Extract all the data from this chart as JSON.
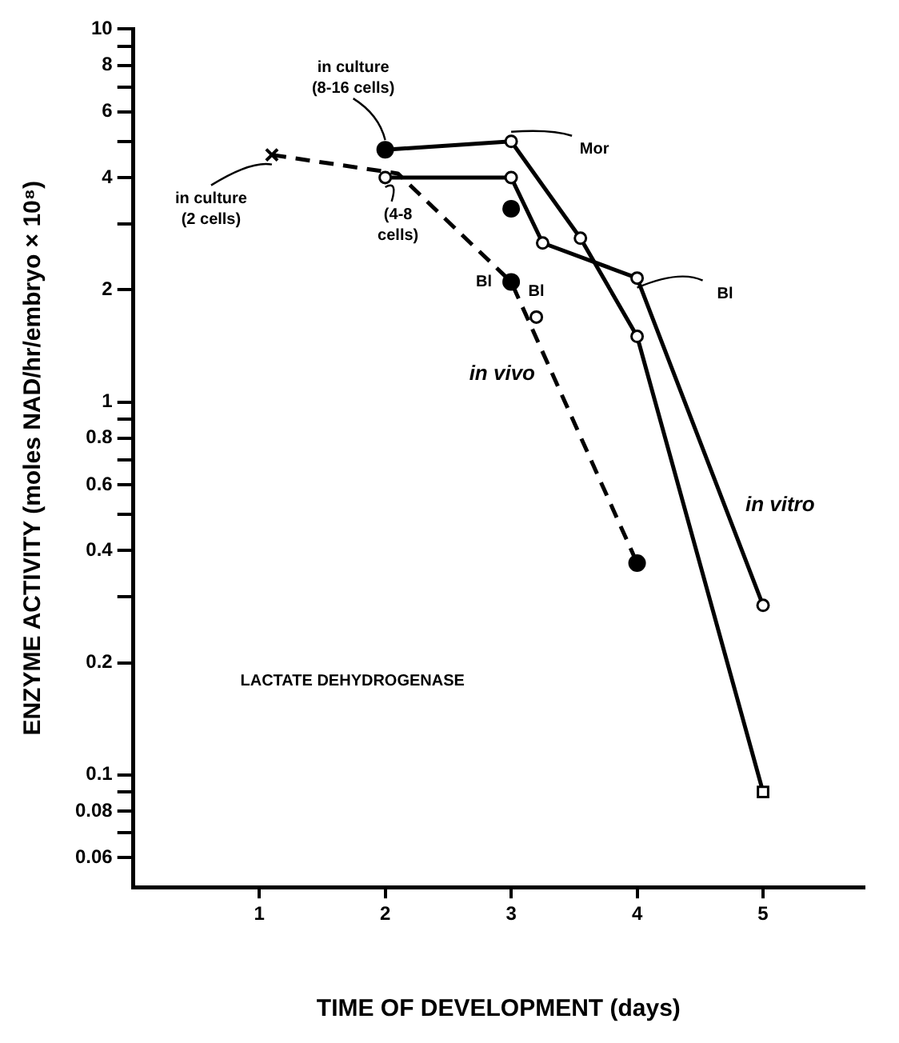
{
  "chart_data": {
    "type": "line",
    "xlabel": "TIME OF DEVELOPMENT (days)",
    "ylabel": "ENZYME ACTIVITY (moles NAD/hr/embryo × 10⁸)",
    "log": "y",
    "grid": false,
    "legend": false,
    "xlim": [
      0,
      5.8
    ],
    "xticks": [
      1,
      2,
      3,
      4,
      5
    ],
    "ylim": [
      0.05,
      10
    ],
    "yticks": [
      10,
      {
        "value": 9,
        "label": null
      },
      8,
      {
        "value": 7,
        "label": null
      },
      6,
      {
        "value": 5,
        "label": null
      },
      4,
      {
        "value": 3,
        "label": null
      },
      2,
      1,
      {
        "value": 0.9,
        "label": null
      },
      0.8,
      {
        "value": 0.7,
        "label": null
      },
      0.6,
      {
        "value": 0.5,
        "label": null
      },
      0.4,
      {
        "value": 0.3,
        "label": null
      },
      0.2,
      0.1,
      {
        "value": 0.09,
        "label": null
      },
      0.08,
      {
        "value": 0.07,
        "label": null
      },
      0.06
    ],
    "series": [
      {
        "name": "in vivo",
        "line_style": "dashed",
        "marker": "none",
        "color": "#000000",
        "x": [
          1.1,
          2.1,
          3,
          4
        ],
        "values": [
          4.6,
          4.1,
          2.1,
          0.37
        ]
      },
      {
        "line_style": "solid",
        "marker": "circle",
        "color": "#000000",
        "x": [
          2,
          3,
          3.55,
          4,
          5
        ],
        "values": [
          4.75,
          5.0,
          2.75,
          1.5,
          0.09
        ]
      },
      {
        "name": "in vitro",
        "line_style": "solid",
        "marker": "circle",
        "color": "#000000",
        "x": [
          2,
          3,
          3.25,
          4,
          5
        ],
        "values": [
          4.0,
          4.0,
          2.67,
          2.15,
          0.285
        ]
      },
      {
        "line_style": "solid",
        "marker": "circle",
        "color": "#000000",
        "x": [
          3.2
        ],
        "values": [
          1.69
        ]
      },
      {
        "line_style": "solid",
        "marker": "square",
        "color": "#000000",
        "x": [
          5
        ],
        "values": [
          0.09
        ]
      },
      {
        "type": "scatter",
        "marker": "circle",
        "color": "#000000",
        "x": [
          2,
          3,
          3,
          4
        ],
        "values": [
          4.75,
          2.1,
          3.3,
          0.37
        ]
      },
      {
        "type": "scatter",
        "marker": "cross",
        "color": "#000000",
        "x": [
          1.1
        ],
        "values": [
          4.6
        ]
      }
    ],
    "annotations": [
      {
        "text": "in culture\n(8-16 cells)",
        "x": 2,
        "y": 4.75
      },
      {
        "text": "in culture\n(2 cells)",
        "x": 1.1,
        "y": 4.6
      },
      {
        "text": "(4-8\ncells)",
        "x": 2,
        "y": 4.0
      },
      {
        "text": "Bl",
        "x": 3,
        "y": 2.1
      },
      {
        "text": "Bl",
        "x": 3.2,
        "y": 1.69
      },
      {
        "text": "Bl",
        "x": 4,
        "y": 2.15
      },
      {
        "text": "Mor",
        "x": 3,
        "y": 5.0
      },
      "LACTATE DEHYDROGENASE"
    ]
  }
}
